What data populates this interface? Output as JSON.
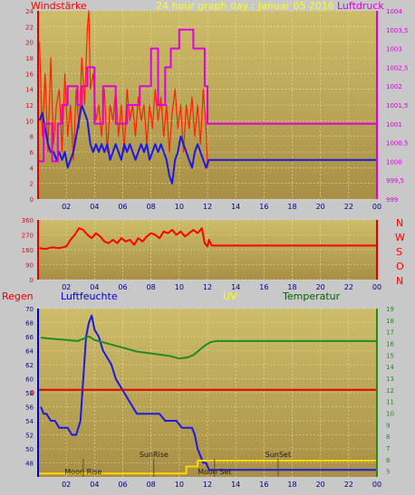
{
  "top_panel": {
    "left_label": "Windstärke",
    "title": "24 hour graph day : Januar 05 2016",
    "right_label": "Luftdruck"
  },
  "middle_panel": {
    "direction_labels": [
      "N",
      "W",
      "S",
      "O",
      "N"
    ]
  },
  "bottom_panel": {
    "label_regen": "Regen",
    "label_humidity": "Luftfeuchte",
    "label_uv": "UV",
    "label_temperature": "Temperatur",
    "rain_zero_label": "0",
    "markers": [
      "Moon Rise",
      "SunRise",
      "SunSet",
      "Moon Set"
    ]
  },
  "colors": {
    "plot_top": "#C8B967",
    "plot_bottom": "#A88F45",
    "wind_gust": "#FF2200",
    "wind_avg": "#1A1AE0",
    "pressure": "#E000E0",
    "direction": "#FF0000",
    "humidity": "#1A1AE0",
    "temperature": "#228B22",
    "rain": "#E00000",
    "uv": "#FFD700",
    "title_color": "#FFFF00"
  },
  "chart_data": [
    {
      "type": "line",
      "title": "24 hour graph day : Januar 05 2016",
      "xlabel": "",
      "x_ticks": [
        "02",
        "04",
        "06",
        "08",
        "10",
        "12",
        "14",
        "16",
        "18",
        "20",
        "22",
        "00"
      ],
      "xlim": [
        0,
        24
      ],
      "left_axis": {
        "label": "Windstärke",
        "ticks": [
          0,
          2,
          4,
          6,
          8,
          10,
          12,
          14,
          16,
          18,
          20,
          22,
          24
        ],
        "ylim": [
          0,
          24
        ]
      },
      "right_axis": {
        "label": "Luftdruck",
        "ticks": [
          "999",
          "999,5",
          "1000",
          "1000,5",
          "1001",
          "1001,5",
          "1002",
          "1002,5",
          "1003",
          "1003,5",
          "1004"
        ],
        "ylim": [
          999,
          1004
        ]
      },
      "series": [
        {
          "name": "Windstärke",
          "axis": "left",
          "x": [
            0.1,
            0.3,
            0.5,
            0.7,
            0.9,
            1.1,
            1.3,
            1.5,
            1.7,
            1.9,
            2.1,
            2.3,
            2.5,
            2.7,
            2.9,
            3.1,
            3.3,
            3.5,
            3.6,
            3.7,
            3.9,
            4.1,
            4.3,
            4.5,
            4.7,
            4.9,
            5.1,
            5.3,
            5.5,
            5.7,
            5.9,
            6.1,
            6.3,
            6.5,
            6.7,
            6.9,
            7.1,
            7.3,
            7.5,
            7.7,
            7.9,
            8.1,
            8.3,
            8.5,
            8.7,
            8.9,
            9.1,
            9.3,
            9.5,
            9.7,
            9.9,
            10.1,
            10.3,
            10.5,
            10.7,
            10.9,
            11.1,
            11.3,
            11.5,
            11.7,
            11.9,
            12.0,
            12.1,
            12.3,
            24.0
          ],
          "values": [
            20,
            8,
            16,
            6,
            18,
            7,
            12,
            14,
            6,
            16,
            8,
            12,
            5,
            14,
            9,
            18,
            12,
            22,
            24,
            14,
            16,
            10,
            12,
            8,
            14,
            6,
            12,
            10,
            14,
            8,
            12,
            6,
            14,
            10,
            12,
            8,
            13,
            10,
            12,
            7,
            12,
            9,
            14,
            10,
            13,
            8,
            12,
            6,
            11,
            14,
            9,
            12,
            6,
            12,
            9,
            13,
            8,
            12,
            7,
            14,
            9,
            4,
            5,
            5,
            5
          ]
        },
        {
          "name": "Windstärke Mittel",
          "axis": "left",
          "x": [
            0.1,
            0.3,
            0.5,
            0.7,
            0.9,
            1.1,
            1.3,
            1.5,
            1.7,
            1.9,
            2.1,
            2.3,
            2.5,
            2.7,
            2.9,
            3.1,
            3.3,
            3.5,
            3.7,
            3.9,
            4.1,
            4.3,
            4.5,
            4.7,
            4.9,
            5.1,
            5.3,
            5.5,
            5.7,
            5.9,
            6.1,
            6.3,
            6.5,
            6.7,
            6.9,
            7.1,
            7.3,
            7.5,
            7.7,
            7.9,
            8.1,
            8.3,
            8.5,
            8.7,
            8.9,
            9.1,
            9.3,
            9.5,
            9.7,
            9.9,
            10.1,
            10.3,
            10.5,
            10.7,
            10.9,
            11.1,
            11.3,
            11.5,
            11.7,
            11.9,
            12.1,
            12.3,
            24.0
          ],
          "values": [
            10,
            11,
            9,
            7,
            6,
            6,
            5,
            6,
            5,
            6,
            4,
            5,
            6,
            8,
            10,
            12,
            11,
            10,
            7,
            6,
            7,
            6,
            7,
            6,
            7,
            5,
            6,
            7,
            6,
            5,
            7,
            6,
            7,
            6,
            5,
            6,
            7,
            6,
            7,
            5,
            6,
            7,
            6,
            7,
            6,
            5,
            3,
            2,
            5,
            6,
            8,
            7,
            6,
            5,
            4,
            6,
            7,
            6,
            5,
            4,
            5,
            5,
            5
          ]
        },
        {
          "name": "Luftdruck",
          "axis": "right",
          "x": [
            0.0,
            0.4,
            0.4,
            1.0,
            1.0,
            1.4,
            1.4,
            1.7,
            1.7,
            2.1,
            2.1,
            2.8,
            2.8,
            3.1,
            3.1,
            3.5,
            3.5,
            4.0,
            4.0,
            4.6,
            4.6,
            5.5,
            5.5,
            6.3,
            6.3,
            7.2,
            7.2,
            8.0,
            8.0,
            8.5,
            8.5,
            9.0,
            9.0,
            9.4,
            9.4,
            10.0,
            10.0,
            11.0,
            11.0,
            11.8,
            11.8,
            12.0,
            12.0,
            24.0
          ],
          "values": [
            1000,
            1000,
            1001,
            1001,
            1000,
            1000,
            1001,
            1001,
            1001.5,
            1001.5,
            1002,
            1002,
            1001.5,
            1001.5,
            1002,
            1002,
            1002.5,
            1002.5,
            1001,
            1001,
            1002,
            1002,
            1001,
            1001,
            1001.5,
            1001.5,
            1002,
            1002,
            1003,
            1003,
            1001.5,
            1001.5,
            1002.5,
            1002.5,
            1003,
            1003,
            1003.5,
            1003.5,
            1003,
            1003,
            1002,
            1002,
            1001,
            1001
          ]
        }
      ]
    },
    {
      "type": "line",
      "xlabel": "",
      "x_ticks": [
        "02",
        "04",
        "06",
        "08",
        "10",
        "12",
        "14",
        "16",
        "18",
        "20",
        "22",
        "00"
      ],
      "xlim": [
        0,
        24
      ],
      "left_axis": {
        "ticks": [
          0,
          90,
          180,
          270,
          360
        ],
        "ylim": [
          0,
          360
        ]
      },
      "right_axis": {
        "ticks": [
          "N",
          "W",
          "S",
          "O",
          "N"
        ]
      },
      "series": [
        {
          "name": "Windrichtung",
          "x": [
            0.1,
            0.5,
            1.0,
            1.5,
            2.0,
            2.3,
            2.6,
            2.9,
            3.2,
            3.5,
            3.8,
            4.1,
            4.4,
            4.7,
            5.0,
            5.3,
            5.6,
            5.9,
            6.2,
            6.5,
            6.8,
            7.1,
            7.4,
            7.7,
            8.0,
            8.3,
            8.6,
            8.9,
            9.2,
            9.5,
            9.8,
            10.1,
            10.4,
            10.7,
            11.0,
            11.3,
            11.6,
            11.8,
            12.0,
            12.1,
            12.3,
            24.0
          ],
          "values": [
            190,
            185,
            195,
            190,
            200,
            240,
            270,
            310,
            300,
            270,
            250,
            280,
            260,
            230,
            220,
            240,
            220,
            250,
            230,
            240,
            210,
            250,
            230,
            260,
            280,
            270,
            250,
            290,
            280,
            300,
            270,
            290,
            260,
            280,
            300,
            280,
            310,
            220,
            200,
            240,
            205,
            205
          ]
        }
      ]
    },
    {
      "type": "line",
      "xlabel": "",
      "x_ticks": [
        "02",
        "04",
        "06",
        "08",
        "10",
        "12",
        "14",
        "16",
        "18",
        "20",
        "22",
        "00"
      ],
      "xlim": [
        0,
        24
      ],
      "left_axis": {
        "label": "Luftfeuchte",
        "ticks": [
          48,
          50,
          52,
          54,
          56,
          58,
          60,
          62,
          64,
          66,
          68,
          70
        ],
        "ylim": [
          46,
          70
        ]
      },
      "right_axis": {
        "label": "Temperatur",
        "ticks": [
          5,
          6,
          7,
          8,
          9,
          10,
          11,
          12,
          13,
          14,
          15,
          16,
          17,
          18,
          19
        ],
        "ylim": [
          4.5,
          19
        ]
      },
      "series": [
        {
          "name": "Luftfeuchte",
          "axis": "left",
          "x": [
            0.2,
            0.4,
            0.6,
            0.9,
            1.2,
            1.5,
            1.8,
            2.1,
            2.4,
            2.7,
            3.0,
            3.2,
            3.4,
            3.6,
            3.8,
            4.0,
            4.3,
            4.6,
            4.9,
            5.2,
            5.5,
            5.8,
            6.1,
            6.4,
            6.7,
            7.0,
            7.4,
            7.8,
            8.2,
            8.6,
            9.0,
            9.4,
            9.8,
            10.2,
            10.6,
            10.9,
            11.1,
            11.3,
            11.5,
            11.7,
            11.9,
            12.1,
            12.3,
            13.0,
            24.0
          ],
          "values": [
            56,
            55,
            55,
            54,
            54,
            53,
            53,
            53,
            52,
            52,
            54,
            60,
            66,
            68,
            69,
            67,
            66,
            64,
            63,
            62,
            60,
            59,
            58,
            57,
            56,
            55,
            55,
            55,
            55,
            55,
            54,
            54,
            54,
            53,
            53,
            53,
            52,
            50,
            49,
            48,
            48,
            47,
            47,
            47,
            47
          ]
        },
        {
          "name": "Temperatur",
          "axis": "right",
          "x": [
            0.2,
            1.0,
            2.0,
            2.8,
            3.2,
            3.6,
            4.0,
            4.6,
            5.2,
            5.8,
            6.4,
            7.0,
            7.6,
            8.2,
            8.8,
            9.4,
            10.0,
            10.6,
            11.0,
            11.4,
            11.8,
            12.2,
            12.6,
            13.0,
            24.0
          ],
          "values": [
            16.5,
            16.4,
            16.3,
            16.2,
            16.4,
            16.6,
            16.3,
            16.1,
            15.9,
            15.7,
            15.5,
            15.3,
            15.2,
            15.1,
            15.0,
            14.9,
            14.7,
            14.8,
            15.0,
            15.4,
            15.8,
            16.1,
            16.2,
            16.2,
            16.2
          ]
        },
        {
          "name": "Regen",
          "axis": "right",
          "x": [
            0,
            24
          ],
          "values": [
            12.0,
            12.0
          ]
        },
        {
          "name": "UV",
          "axis": "right",
          "x": [
            0.0,
            10.5,
            10.5,
            11.3,
            11.3,
            24.0
          ],
          "values": [
            4.8,
            4.8,
            5.4,
            5.4,
            5.9,
            5.9
          ]
        }
      ],
      "markers": [
        {
          "label": "Moon Rise",
          "x": 3.2
        },
        {
          "label": "SunRise",
          "x": 8.2
        },
        {
          "label": "SunSet",
          "x": 17.0
        },
        {
          "label": "Moon Set",
          "x": 12.5
        }
      ]
    }
  ]
}
